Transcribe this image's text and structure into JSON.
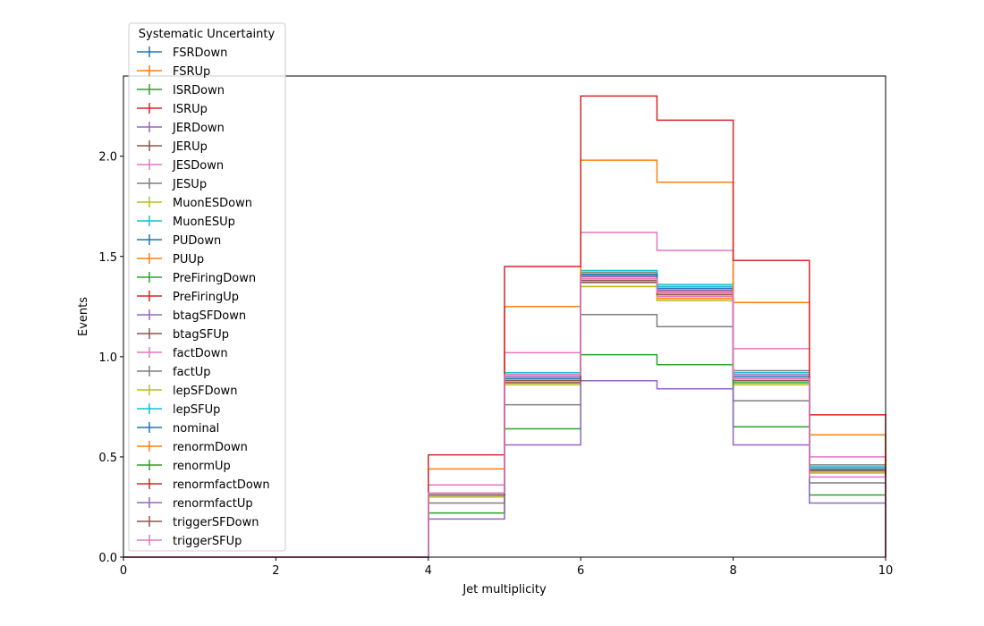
{
  "chart_data": {
    "type": "line",
    "drawstyle": "steps-hist",
    "xlabel": "Jet multiplicity",
    "ylabel": "Events",
    "xlim": [
      0,
      10
    ],
    "ylim": [
      0,
      2.4
    ],
    "xticks": [
      0,
      2,
      4,
      6,
      8,
      10
    ],
    "yticks": [
      0.0,
      0.5,
      1.0,
      1.5,
      2.0
    ],
    "ytick_labels": [
      "0.0",
      "0.5",
      "1.0",
      "1.5",
      "2.0"
    ],
    "grid": false,
    "legend": {
      "title": "Systematic Uncertainty",
      "location": "top-left outside"
    },
    "bin_edges": [
      0,
      1,
      2,
      3,
      4,
      5,
      6,
      7,
      8,
      9,
      10
    ],
    "series": [
      {
        "name": "FSRDown",
        "color": "#1f77b4",
        "values": [
          0,
          0,
          0,
          0,
          0.31,
          0.89,
          1.42,
          1.34,
          0.9,
          0.44
        ]
      },
      {
        "name": "FSRUp",
        "color": "#ff7f0e",
        "values": [
          0,
          0,
          0,
          0,
          0.3,
          0.87,
          1.35,
          1.29,
          0.88,
          0.43
        ]
      },
      {
        "name": "ISRDown",
        "color": "#2ca02c",
        "values": [
          0,
          0,
          0,
          0,
          0.31,
          0.88,
          1.39,
          1.31,
          0.87,
          0.43
        ]
      },
      {
        "name": "ISRUp",
        "color": "#d62728",
        "values": [
          0,
          0,
          0,
          0,
          0.32,
          0.9,
          1.4,
          1.32,
          0.9,
          0.44
        ]
      },
      {
        "name": "JERDown",
        "color": "#9467bd",
        "values": [
          0,
          0,
          0,
          0,
          0.31,
          0.89,
          1.4,
          1.33,
          0.89,
          0.44
        ]
      },
      {
        "name": "JERUp",
        "color": "#8c564b",
        "values": [
          0,
          0,
          0,
          0,
          0.31,
          0.88,
          1.38,
          1.31,
          0.88,
          0.43
        ]
      },
      {
        "name": "JESDown",
        "color": "#e377c2",
        "values": [
          0,
          0,
          0,
          0,
          0.3,
          0.86,
          1.37,
          1.3,
          0.86,
          0.42
        ]
      },
      {
        "name": "JESUp",
        "color": "#7f7f7f",
        "values": [
          0,
          0,
          0,
          0,
          0.32,
          0.91,
          1.42,
          1.35,
          0.93,
          0.46
        ]
      },
      {
        "name": "MuonESDown",
        "color": "#bcbd22",
        "values": [
          0,
          0,
          0,
          0,
          0.31,
          0.89,
          1.4,
          1.33,
          0.89,
          0.44
        ]
      },
      {
        "name": "MuonESUp",
        "color": "#17becf",
        "values": [
          0,
          0,
          0,
          0,
          0.31,
          0.89,
          1.41,
          1.35,
          0.9,
          0.44
        ]
      },
      {
        "name": "PUDown",
        "color": "#1f77b4",
        "values": [
          0,
          0,
          0,
          0,
          0.31,
          0.89,
          1.41,
          1.34,
          0.9,
          0.44
        ]
      },
      {
        "name": "PUUp",
        "color": "#ff7f0e",
        "values": [
          0,
          0,
          0,
          0,
          0.3,
          0.88,
          1.39,
          1.32,
          0.89,
          0.43
        ]
      },
      {
        "name": "PreFiringDown",
        "color": "#2ca02c",
        "values": [
          0,
          0,
          0,
          0,
          0.31,
          0.89,
          1.41,
          1.34,
          0.9,
          0.44
        ]
      },
      {
        "name": "PreFiringUp",
        "color": "#d62728",
        "values": [
          0,
          0,
          0,
          0,
          0.31,
          0.89,
          1.4,
          1.33,
          0.89,
          0.44
        ]
      },
      {
        "name": "btagSFDown",
        "color": "#9467bd",
        "values": [
          0,
          0,
          0,
          0,
          0.31,
          0.9,
          1.4,
          1.33,
          0.91,
          0.45
        ]
      },
      {
        "name": "btagSFUp",
        "color": "#8c564b",
        "values": [
          0,
          0,
          0,
          0,
          0.3,
          0.87,
          1.37,
          1.31,
          0.88,
          0.44
        ]
      },
      {
        "name": "factDown",
        "color": "#e377c2",
        "values": [
          0,
          0,
          0,
          0,
          0.36,
          1.02,
          1.62,
          1.53,
          1.04,
          0.5
        ]
      },
      {
        "name": "factUp",
        "color": "#7f7f7f",
        "values": [
          0,
          0,
          0,
          0,
          0.27,
          0.76,
          1.21,
          1.15,
          0.78,
          0.37
        ]
      },
      {
        "name": "lepSFDown",
        "color": "#bcbd22",
        "values": [
          0,
          0,
          0,
          0,
          0.3,
          0.86,
          1.35,
          1.28,
          0.86,
          0.42
        ]
      },
      {
        "name": "lepSFUp",
        "color": "#17becf",
        "values": [
          0,
          0,
          0,
          0,
          0.32,
          0.92,
          1.43,
          1.36,
          0.92,
          0.45
        ]
      },
      {
        "name": "nominal",
        "color": "#1f77b4",
        "values": [
          0,
          0,
          0,
          0,
          0.31,
          0.89,
          1.41,
          1.34,
          0.9,
          0.44
        ]
      },
      {
        "name": "renormDown",
        "color": "#ff7f0e",
        "values": [
          0,
          0,
          0,
          0,
          0.44,
          1.25,
          1.98,
          1.87,
          1.27,
          0.61
        ]
      },
      {
        "name": "renormUp",
        "color": "#2ca02c",
        "values": [
          0,
          0,
          0,
          0,
          0.22,
          0.64,
          1.01,
          0.96,
          0.65,
          0.31
        ]
      },
      {
        "name": "renormfactDown",
        "color": "#d62728",
        "values": [
          0,
          0,
          0,
          0,
          0.51,
          1.45,
          2.3,
          2.18,
          1.48,
          0.71
        ]
      },
      {
        "name": "renormfactUp",
        "color": "#9467bd",
        "values": [
          0,
          0,
          0,
          0,
          0.19,
          0.56,
          0.88,
          0.84,
          0.56,
          0.27
        ]
      },
      {
        "name": "triggerSFDown",
        "color": "#8c564b",
        "values": [
          0,
          0,
          0,
          0,
          0.31,
          0.88,
          1.38,
          1.31,
          0.89,
          0.43
        ]
      },
      {
        "name": "triggerSFUp",
        "color": "#e377c2",
        "values": [
          0,
          0,
          0,
          0,
          0.32,
          0.91,
          1.39,
          1.32,
          0.89,
          0.4
        ]
      }
    ]
  }
}
